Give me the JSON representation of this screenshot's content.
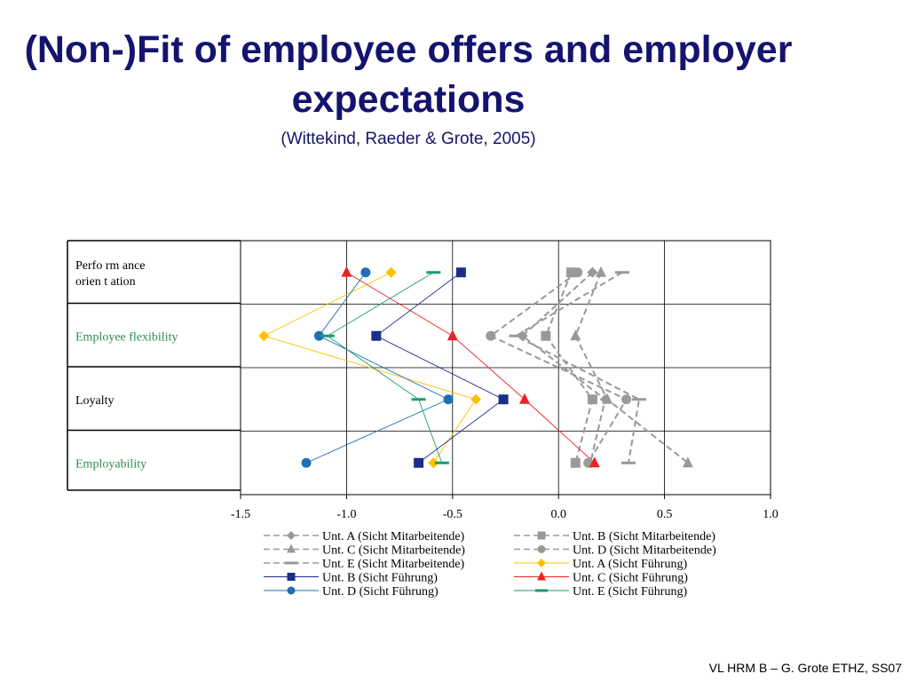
{
  "slide": {
    "title": "(Non-)Fit of employee offers and employer expectations",
    "subtitle": "(Wittekind, Raeder & Grote, 2005)",
    "footer": "VL HRM B – G. Grote ETHZ, SS07"
  },
  "chart_data": {
    "type": "line",
    "categories": [
      {
        "label": "Performance orientation",
        "lines": [
          "Perfo rm ance",
          "orien t ation"
        ],
        "color": "#000000"
      },
      {
        "label": "Employee flexibility",
        "lines": [
          "Employee flexibility"
        ],
        "color": "#2e8b57"
      },
      {
        "label": "Loyalty",
        "lines": [
          "Loyalty"
        ],
        "color": "#000000"
      },
      {
        "label": "Employability",
        "lines": [
          "Employability"
        ],
        "color": "#2e8b57"
      }
    ],
    "xlim": [
      -1.5,
      1.0
    ],
    "xticks": [
      "-1.5",
      "-1.0",
      "-0.5",
      "0.0",
      "0.5",
      "1.0"
    ],
    "grid": true,
    "legend_position": "bottom",
    "series": [
      {
        "name": "Unt. A (Sicht Mitarbeitende)",
        "values": [
          0.16,
          -0.17,
          0.22,
          0.15
        ],
        "color": "#999999",
        "marker": "diamond",
        "dashed": true
      },
      {
        "name": "Unt. B (Sicht Mitarbeitende)",
        "values": [
          0.06,
          -0.06,
          0.16,
          0.08
        ],
        "color": "#999999",
        "marker": "square",
        "dashed": true
      },
      {
        "name": "Unt. C (Sicht Mitarbeitende)",
        "values": [
          0.2,
          0.08,
          0.23,
          0.61
        ],
        "color": "#999999",
        "marker": "triangle",
        "dashed": true
      },
      {
        "name": "Unt. D (Sicht Mitarbeitende)",
        "values": [
          0.09,
          -0.32,
          0.32,
          0.14
        ],
        "color": "#999999",
        "marker": "circle",
        "dashed": true
      },
      {
        "name": "Unt. E (Sicht Mitarbeitende)",
        "values": [
          0.3,
          -0.2,
          0.38,
          0.33
        ],
        "color": "#999999",
        "marker": "dash",
        "dashed": true
      },
      {
        "name": "Unt. A (Sicht Führung)",
        "values": [
          -0.79,
          -1.39,
          -0.39,
          -0.59
        ],
        "color": "#ffc000",
        "marker": "diamond",
        "dashed": false
      },
      {
        "name": "Unt. B (Sicht Führung)",
        "values": [
          -0.46,
          -0.86,
          -0.26,
          -0.66
        ],
        "color": "#1a2e8c",
        "marker": "square",
        "dashed": false
      },
      {
        "name": "Unt. C (Sicht Führung)",
        "values": [
          -1.0,
          -0.5,
          -0.16,
          0.17
        ],
        "color": "#ee2222",
        "marker": "triangle",
        "dashed": false
      },
      {
        "name": "Unt. D (Sicht Führung)",
        "values": [
          -0.91,
          -1.13,
          -0.52,
          -1.19
        ],
        "color": "#1f6fb4",
        "marker": "circle",
        "dashed": false
      },
      {
        "name": "Unt. E (Sicht Führung)",
        "values": [
          -0.59,
          -1.09,
          -0.66,
          -0.55
        ],
        "color": "#1a9c6e",
        "marker": "dash",
        "dashed": false
      }
    ]
  }
}
